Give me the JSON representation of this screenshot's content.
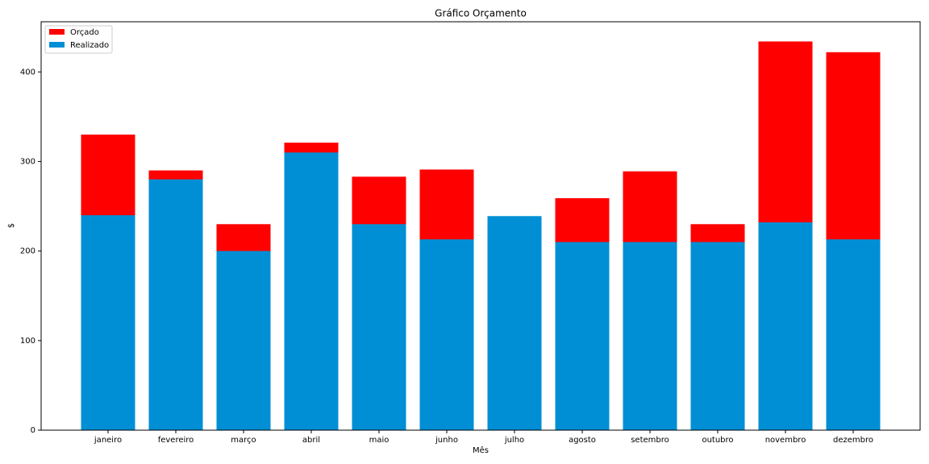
{
  "chart_data": {
    "type": "bar",
    "title": "Gráfico Orçamento",
    "xlabel": "Mês",
    "ylabel": "$",
    "categories": [
      "janeiro",
      "fevereiro",
      "março",
      "abril",
      "maio",
      "junho",
      "julho",
      "agosto",
      "setembro",
      "outubro",
      "novembro",
      "dezembro"
    ],
    "series": [
      {
        "name": "Orçado",
        "color": "#ff0000",
        "values": [
          330,
          290,
          230,
          321,
          283,
          291,
          230,
          259,
          289,
          230,
          434,
          422
        ]
      },
      {
        "name": "Realizado",
        "color": "#008fd5",
        "values": [
          240,
          280,
          200,
          310,
          230,
          213,
          239,
          210,
          210,
          210,
          232,
          213
        ]
      }
    ],
    "ylim": [
      0,
      456
    ],
    "yticks": [
      0,
      100,
      200,
      300,
      400
    ],
    "legend": "upper left"
  }
}
